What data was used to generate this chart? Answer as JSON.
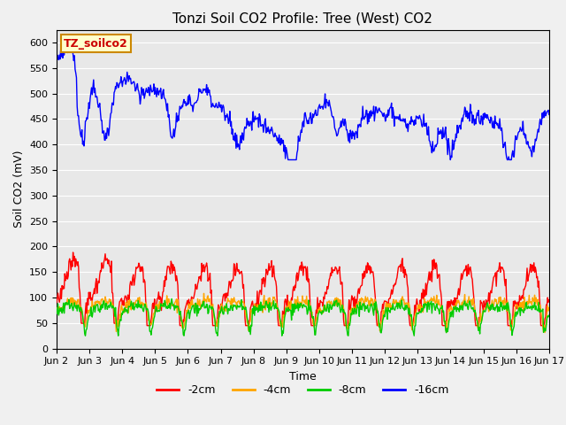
{
  "title": "Tonzi Soil CO2 Profile: Tree (West) CO2",
  "ylabel": "Soil CO2 (mV)",
  "xlabel": "Time",
  "ylim": [
    0,
    625
  ],
  "yticks": [
    0,
    50,
    100,
    150,
    200,
    250,
    300,
    350,
    400,
    450,
    500,
    550,
    600
  ],
  "xtick_labels": [
    "Jun 2",
    "Jun 3",
    "Jun 4",
    "Jun 5",
    "Jun 6",
    "Jun 7",
    "Jun 8",
    "Jun 9",
    "Jun 10",
    "Jun 11",
    "Jun 12",
    "Jun 13",
    "Jun 14",
    "Jun 15",
    "Jun 16",
    "Jun 17"
  ],
  "series_colors": {
    "-2cm": "#ff0000",
    "-4cm": "#ffa500",
    "-8cm": "#00cc00",
    "-16cm": "#0000ff"
  },
  "legend_label_color": "#cc0000",
  "annotation_box": "TZ_soilco2",
  "annotation_box_facecolor": "#ffffcc",
  "annotation_box_edgecolor": "#cc8800",
  "plot_bg_color": "#e8e8e8",
  "fig_bg_color": "#f0f0f0",
  "title_fontsize": 11,
  "axis_fontsize": 9,
  "tick_fontsize": 8,
  "legend_fontsize": 9,
  "line_width": 1.0
}
